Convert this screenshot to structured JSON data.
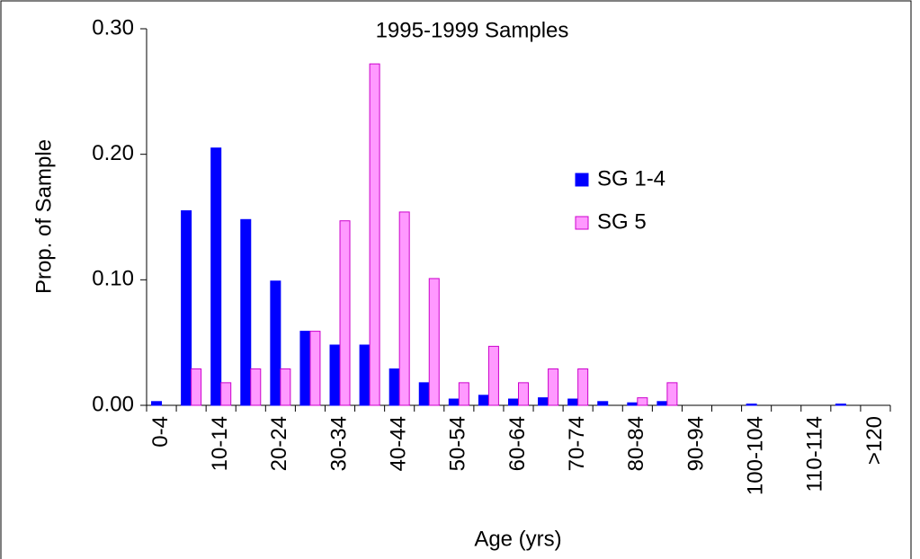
{
  "chart_data": {
    "type": "bar",
    "title": "1995-1999 Samples",
    "x_label": "Age (yrs)",
    "y_label": "Prop. of Sample",
    "categories": [
      "0-4",
      null,
      "10-14",
      null,
      "20-24",
      null,
      "30-34",
      null,
      "40-44",
      null,
      "50-54",
      null,
      "60-64",
      null,
      "70-74",
      null,
      "80-84",
      null,
      "90-94",
      null,
      "100-104",
      null,
      "110-114",
      null,
      ">120"
    ],
    "series": [
      {
        "name": "SG 1-4",
        "color": "#0000ff",
        "values": [
          0.003,
          0.155,
          0.205,
          0.148,
          0.099,
          0.059,
          0.048,
          0.048,
          0.029,
          0.018,
          0.005,
          0.008,
          0.005,
          0.006,
          0.005,
          0.003,
          0.002,
          0.003,
          0,
          0,
          0.001,
          0,
          0,
          0.001,
          0
        ]
      },
      {
        "name": "SG 5",
        "color": "#ff99ff",
        "values": [
          0,
          0.029,
          0.018,
          0.029,
          0.029,
          0.059,
          0.147,
          0.272,
          0.154,
          0.101,
          0.018,
          0.047,
          0.018,
          0.029,
          0.029,
          0,
          0.006,
          0.018,
          0,
          0,
          0,
          0,
          0,
          0,
          0
        ]
      }
    ],
    "ylim": [
      0,
      0.3
    ],
    "yticks": [
      {
        "value": 0,
        "label": "0.00"
      },
      {
        "value": 0.1,
        "label": "0.10"
      },
      {
        "value": 0.2,
        "label": "0.20"
      },
      {
        "value": 0.3,
        "label": "0.30"
      }
    ],
    "grid": false,
    "legend": "right"
  }
}
